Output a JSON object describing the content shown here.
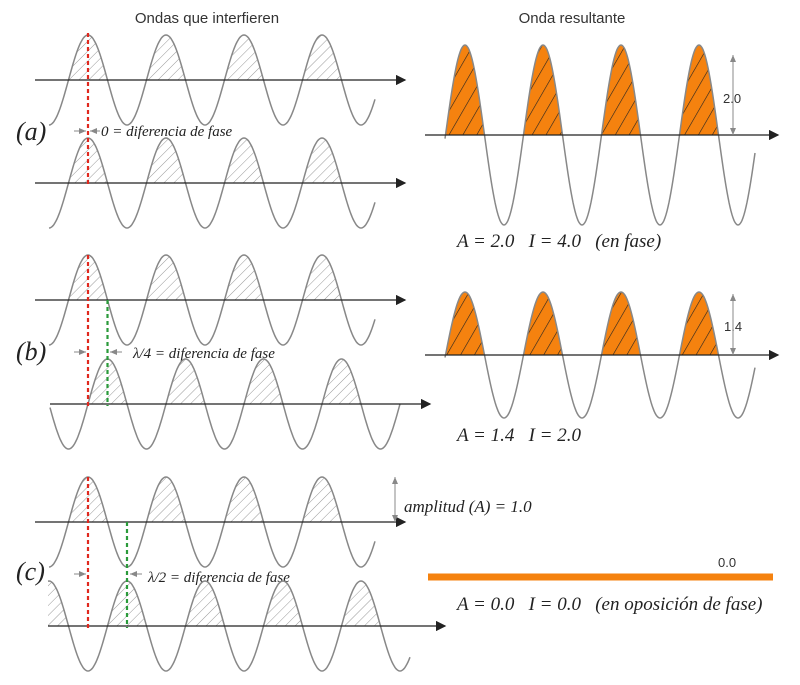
{
  "header": {
    "left_title": "Ondas que interfieren",
    "right_title": "Onda resultante"
  },
  "panels": [
    {
      "label": "(a)",
      "phase_text": "0 = diferencia de fase",
      "amplitude_label": "2.0",
      "result": "A = 2.0   I = 4.0   (en fase)"
    },
    {
      "label": "(b)",
      "phase_text": "λ/4 = diferencia de fase",
      "amplitude_label": "1.4",
      "result": "A = 1.4   I = 2.0"
    },
    {
      "label": "(c)",
      "phase_text": "λ/2 = diferencia de fase",
      "amplitude_label": "0.0",
      "result": "A = 0.0   I = 0.0   (en oposición de fase)",
      "amplitude_note": "amplitud (A) = 1.0"
    }
  ]
}
